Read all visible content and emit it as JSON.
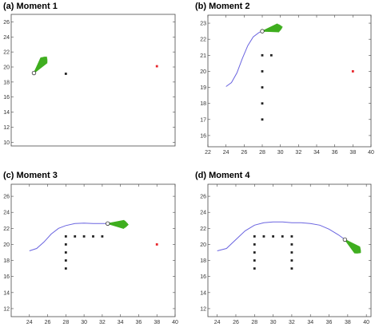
{
  "colors": {
    "trajectory": "#6a64e0",
    "fan": "#3fae1f",
    "obstacle": "#222222",
    "goal": "#e8242a",
    "current": "#ffffff"
  },
  "chart_data": [
    {
      "type": "scatter",
      "title": "(a) Moment 1",
      "xlim": [
        22,
        40
      ],
      "ylim": [
        9.5,
        27
      ],
      "xticks": [],
      "yticks": [
        10,
        12,
        14,
        16,
        18,
        20,
        22,
        24,
        26
      ],
      "trajectory": [],
      "current": [
        24.5,
        19.2
      ],
      "heading_deg": 52,
      "obstacles": [
        [
          28,
          19.1
        ]
      ],
      "goal": [
        38,
        20.1
      ]
    },
    {
      "type": "scatter",
      "title": "(b) Moment 2",
      "xlim": [
        22,
        40
      ],
      "ylim": [
        15.3,
        23.5
      ],
      "xticks": [
        22,
        24,
        26,
        28,
        30,
        32,
        34,
        36,
        38,
        40
      ],
      "yticks": [
        16,
        17,
        18,
        19,
        20,
        21,
        22,
        23
      ],
      "trajectory": [
        [
          24,
          19.05
        ],
        [
          24.6,
          19.3
        ],
        [
          25.2,
          19.9
        ],
        [
          25.8,
          20.8
        ],
        [
          26.4,
          21.6
        ],
        [
          27.0,
          22.15
        ],
        [
          27.6,
          22.4
        ],
        [
          28,
          22.5
        ]
      ],
      "current": [
        28,
        22.5
      ],
      "heading_deg": 12,
      "obstacles": [
        [
          28,
          17
        ],
        [
          28,
          18
        ],
        [
          28,
          19
        ],
        [
          28,
          20
        ],
        [
          28,
          21
        ],
        [
          29,
          21
        ]
      ],
      "goal": [
        38,
        20
      ]
    },
    {
      "type": "scatter",
      "title": "(c) Moment 3",
      "xlim": [
        22,
        40
      ],
      "ylim": [
        11,
        27.5
      ],
      "xticks": [
        24,
        26,
        28,
        30,
        32,
        34,
        36,
        38,
        40
      ],
      "yticks": [
        12,
        14,
        16,
        18,
        20,
        22,
        24,
        26
      ],
      "trajectory": [
        [
          24,
          19.2
        ],
        [
          24.8,
          19.5
        ],
        [
          25.6,
          20.3
        ],
        [
          26.4,
          21.3
        ],
        [
          27.2,
          22.0
        ],
        [
          28.0,
          22.35
        ],
        [
          29.0,
          22.6
        ],
        [
          30.0,
          22.65
        ],
        [
          31.0,
          22.6
        ],
        [
          32.0,
          22.6
        ],
        [
          32.6,
          22.6
        ]
      ],
      "current": [
        32.6,
        22.6
      ],
      "heading_deg": -3,
      "obstacles": [
        [
          28,
          17
        ],
        [
          28,
          18
        ],
        [
          28,
          19
        ],
        [
          28,
          20
        ],
        [
          28,
          21
        ],
        [
          29,
          21
        ],
        [
          30,
          21
        ],
        [
          31,
          21
        ],
        [
          32,
          21
        ]
      ],
      "goal": [
        38,
        20
      ]
    },
    {
      "type": "scatter",
      "title": "(d) Moment 4",
      "xlim": [
        23,
        40.5
      ],
      "ylim": [
        11,
        27.5
      ],
      "xticks": [
        24,
        26,
        28,
        30,
        32,
        34,
        36,
        38,
        40
      ],
      "yticks": [
        12,
        14,
        16,
        18,
        20,
        22,
        24,
        26
      ],
      "trajectory": [
        [
          24,
          19.2
        ],
        [
          25,
          19.5
        ],
        [
          26,
          20.6
        ],
        [
          27,
          21.7
        ],
        [
          28,
          22.4
        ],
        [
          29,
          22.7
        ],
        [
          30,
          22.8
        ],
        [
          31,
          22.8
        ],
        [
          32,
          22.7
        ],
        [
          33,
          22.7
        ],
        [
          34,
          22.6
        ],
        [
          35,
          22.4
        ],
        [
          36,
          21.9
        ],
        [
          37,
          21.2
        ],
        [
          37.7,
          20.6
        ]
      ],
      "current": [
        37.7,
        20.6
      ],
      "heading_deg": -40,
      "obstacles": [
        [
          28,
          17
        ],
        [
          28,
          18
        ],
        [
          28,
          19
        ],
        [
          28,
          20
        ],
        [
          28,
          21
        ],
        [
          29,
          21
        ],
        [
          30,
          21
        ],
        [
          31,
          21
        ],
        [
          32,
          21
        ],
        [
          32,
          20
        ],
        [
          32,
          19
        ],
        [
          32,
          18
        ],
        [
          32,
          17
        ]
      ],
      "goal": null
    }
  ]
}
